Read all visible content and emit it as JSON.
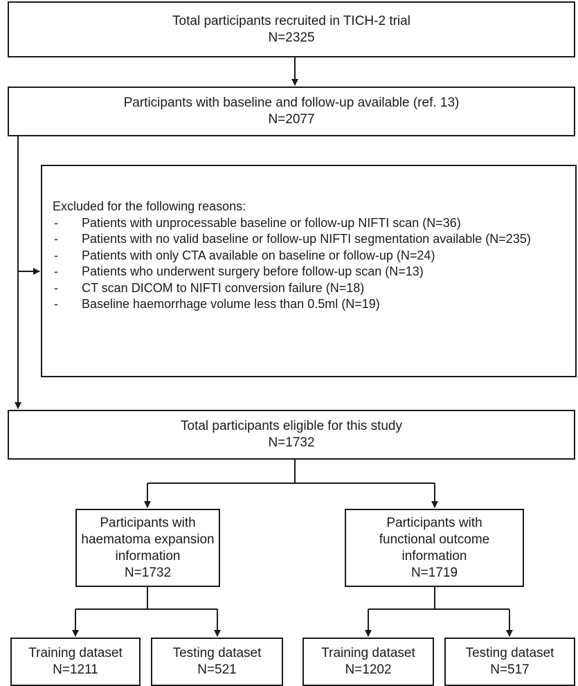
{
  "total": {
    "title": "Total participants recruited in TICH-2 trial",
    "n": "N=2325"
  },
  "available": {
    "title": "Participants with baseline and follow-up available (ref. 13)",
    "n": "N=2077"
  },
  "excluded": {
    "header": "Excluded for the following reasons:",
    "items": [
      "Patients with unprocessable baseline or follow-up NIFTI scan (N=36)",
      "Patients with no valid baseline or follow-up NIFTI segmentation available (N=235)",
      "Patients with only CTA available on baseline or follow-up (N=24)",
      "Patients who underwent surgery before follow-up scan (N=13)",
      "CT scan DICOM to NIFTI conversion failure (N=18)",
      "Baseline haemorrhage volume less than 0.5ml (N=19)"
    ]
  },
  "eligible": {
    "title": "Total participants eligible for this study",
    "n": "N=1732"
  },
  "haematoma": {
    "line1": "Participants with",
    "line2": "haematoma expansion",
    "line3": "information",
    "n": "N=1732"
  },
  "functional": {
    "line1": "Participants with",
    "line2": "functional outcome",
    "line3": "information",
    "n": "N=1719"
  },
  "he_training": {
    "title": "Training dataset",
    "n": "N=1211"
  },
  "he_testing": {
    "title": "Testing dataset",
    "n": "N=521"
  },
  "fo_training": {
    "title": "Training dataset",
    "n": "N=1202"
  },
  "fo_testing": {
    "title": "Testing dataset",
    "n": "N=517"
  }
}
